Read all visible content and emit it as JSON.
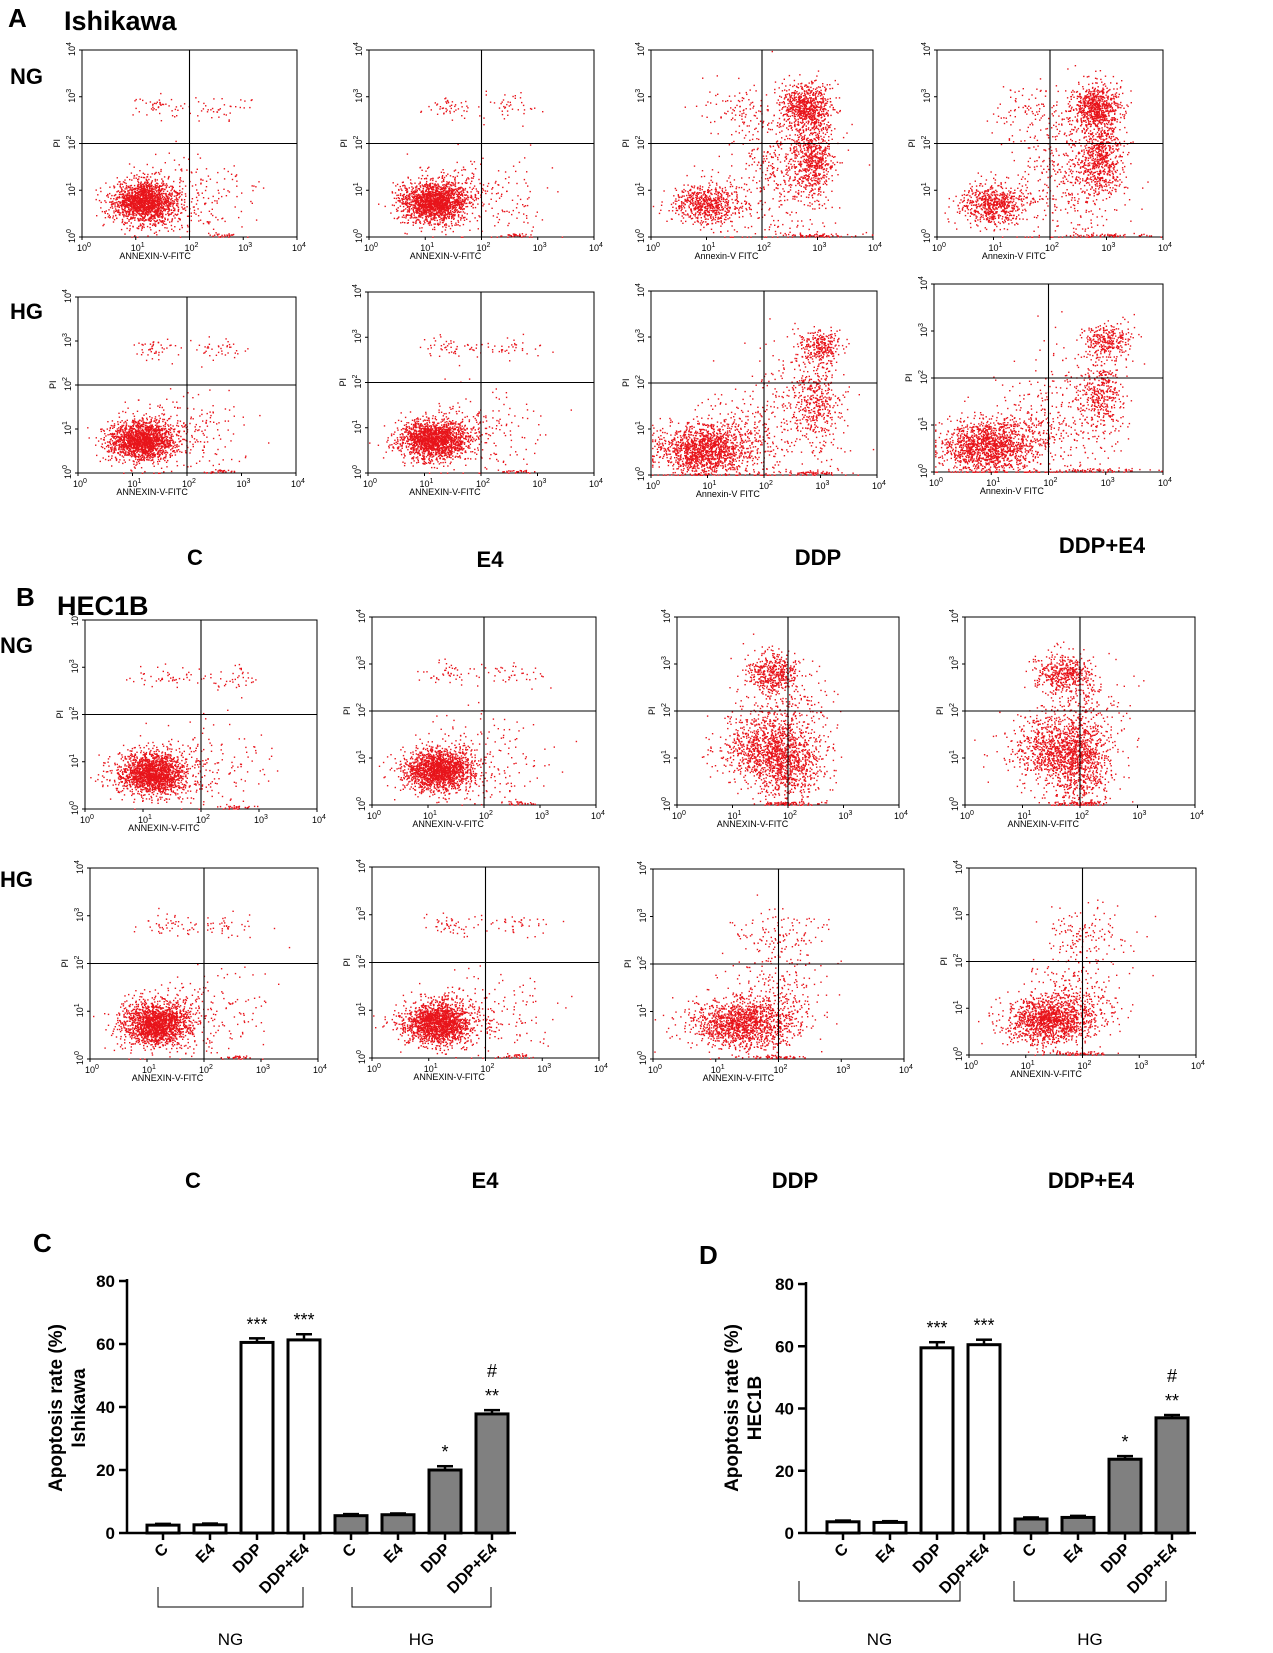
{
  "panels": {
    "A": {
      "letter": "A",
      "title": "Ishikawa"
    },
    "B": {
      "letter": "B",
      "title": "HEC1B"
    },
    "C": {
      "letter": "C"
    },
    "D": {
      "letter": "D"
    }
  },
  "row_labels": {
    "ng": "NG",
    "hg": "HG"
  },
  "group_labels": [
    "C",
    "E4",
    "DDP",
    "DDP+E4"
  ],
  "flow_plots": {
    "y_label": "PI",
    "tick_base": "10",
    "tick_exponents": [
      "0",
      "1",
      "2",
      "3",
      "4"
    ],
    "x_label_styles": {
      "upper": "ANNEXIN-V-FITC",
      "plain": "Annexin-V FITC"
    },
    "plots": [
      {
        "cell": "Ishikawa",
        "condition": "NG",
        "treatment": "C",
        "x_label": "ANNEXIN-V-FITC",
        "quadrant_gate_log": [
          2,
          2
        ]
      },
      {
        "cell": "Ishikawa",
        "condition": "NG",
        "treatment": "E4",
        "x_label": "ANNEXIN-V-FITC",
        "quadrant_gate_log": [
          2,
          2
        ]
      },
      {
        "cell": "Ishikawa",
        "condition": "NG",
        "treatment": "DDP",
        "x_label": "Annexin-V FITC",
        "quadrant_gate_log": [
          2,
          2
        ]
      },
      {
        "cell": "Ishikawa",
        "condition": "NG",
        "treatment": "DDP+E4",
        "x_label": "Annexin-V FITC",
        "quadrant_gate_log": [
          2,
          2
        ]
      },
      {
        "cell": "Ishikawa",
        "condition": "HG",
        "treatment": "C",
        "x_label": "ANNEXIN-V-FITC",
        "quadrant_gate_log": [
          2,
          2
        ]
      },
      {
        "cell": "Ishikawa",
        "condition": "HG",
        "treatment": "E4",
        "x_label": "ANNEXIN-V-FITC",
        "quadrant_gate_log": [
          2,
          2
        ]
      },
      {
        "cell": "Ishikawa",
        "condition": "HG",
        "treatment": "DDP",
        "x_label": "Annexin-V FITC",
        "quadrant_gate_log": [
          2,
          2
        ]
      },
      {
        "cell": "Ishikawa",
        "condition": "HG",
        "treatment": "DDP+E4",
        "x_label": "Annexin-V FITC",
        "quadrant_gate_log": [
          2,
          2
        ]
      },
      {
        "cell": "HEC1B",
        "condition": "NG",
        "treatment": "C",
        "x_label": "ANNEXIN-V-FITC",
        "quadrant_gate_log": [
          2,
          2
        ]
      },
      {
        "cell": "HEC1B",
        "condition": "NG",
        "treatment": "E4",
        "x_label": "ANNEXIN-V-FITC",
        "quadrant_gate_log": [
          2,
          2
        ]
      },
      {
        "cell": "HEC1B",
        "condition": "NG",
        "treatment": "DDP",
        "x_label": "ANNEXIN-V-FITC",
        "quadrant_gate_log": [
          2,
          2
        ]
      },
      {
        "cell": "HEC1B",
        "condition": "NG",
        "treatment": "DDP+E4",
        "x_label": "ANNEXIN-V-FITC",
        "quadrant_gate_log": [
          2,
          2
        ]
      },
      {
        "cell": "HEC1B",
        "condition": "HG",
        "treatment": "C",
        "x_label": "ANNEXIN-V-FITC",
        "quadrant_gate_log": [
          2,
          2
        ]
      },
      {
        "cell": "HEC1B",
        "condition": "HG",
        "treatment": "E4",
        "x_label": "ANNEXIN-V-FITC",
        "quadrant_gate_log": [
          2,
          2
        ]
      },
      {
        "cell": "HEC1B",
        "condition": "HG",
        "treatment": "DDP",
        "x_label": "ANNEXIN-V-FITC",
        "quadrant_gate_log": [
          2,
          2
        ]
      },
      {
        "cell": "HEC1B",
        "condition": "HG",
        "treatment": "DDP+E4",
        "x_label": "ANNEXIN-V-FITC",
        "quadrant_gate_log": [
          2,
          2
        ]
      }
    ]
  },
  "colors": {
    "dots": "#e8141b",
    "open_bar": "#ffffff",
    "filled_bar": "#808080",
    "lines": "#000000"
  },
  "chart_data": [
    {
      "type": "bar",
      "panel": "C",
      "title": "",
      "xlabel": "",
      "ylabel": "Apoptosis rate (%)",
      "ylabel2": "Ishikawa",
      "ylim": [
        0,
        80
      ],
      "yticks": [
        "0",
        "20",
        "40",
        "60",
        "80"
      ],
      "categories": [
        "C",
        "E4",
        "DDP",
        "DDP+E4",
        "C",
        "E4",
        "DDP",
        "DDP+E4"
      ],
      "groups": [
        {
          "label": "NG",
          "start": 0,
          "end": 3
        },
        {
          "label": "HG",
          "start": 4,
          "end": 7
        }
      ],
      "values": [
        2.5,
        2.6,
        60.5,
        61.3,
        5.5,
        5.8,
        20.0,
        37.8
      ],
      "errors": [
        0.4,
        0.4,
        1.3,
        1.8,
        0.5,
        0.4,
        1.2,
        1.2
      ],
      "significance": [
        "",
        "",
        "***",
        "***",
        "",
        "",
        "*",
        "**"
      ],
      "significance2": [
        "",
        "",
        "",
        "",
        "",
        "",
        "",
        "#"
      ]
    },
    {
      "type": "bar",
      "panel": "D",
      "title": "",
      "xlabel": "",
      "ylabel": "Apoptosis rate (%)",
      "ylabel2": "HEC1B",
      "ylim": [
        0,
        80
      ],
      "yticks": [
        "0",
        "20",
        "40",
        "60",
        "80"
      ],
      "categories": [
        "C",
        "E4",
        "DDP",
        "DDP+E4",
        "C",
        "E4",
        "DDP",
        "DDP+E4"
      ],
      "groups": [
        {
          "label": "NG",
          "start": 0,
          "end": 3
        },
        {
          "label": "HG",
          "start": 4,
          "end": 7
        }
      ],
      "values": [
        3.6,
        3.4,
        59.5,
        60.5,
        4.5,
        5.0,
        23.7,
        37.0
      ],
      "errors": [
        0.4,
        0.4,
        1.8,
        1.6,
        0.5,
        0.5,
        1.0,
        0.9
      ],
      "significance": [
        "",
        "",
        "***",
        "***",
        "",
        "",
        "*",
        "**"
      ],
      "significance2": [
        "",
        "",
        "",
        "",
        "",
        "",
        "",
        "#"
      ]
    }
  ]
}
